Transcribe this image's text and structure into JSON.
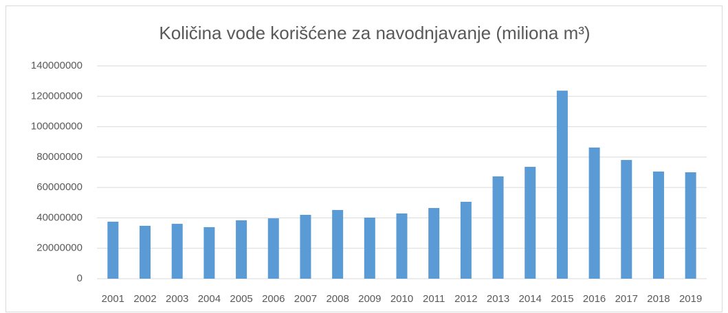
{
  "chart_data": {
    "type": "bar",
    "title": "Količina vode korišćene za navodnjavanje (miliona m³)",
    "categories": [
      "2001",
      "2002",
      "2003",
      "2004",
      "2005",
      "2006",
      "2007",
      "2008",
      "2009",
      "2010",
      "2011",
      "2012",
      "2013",
      "2014",
      "2015",
      "2016",
      "2017",
      "2018",
      "2019"
    ],
    "values": [
      37500000,
      34800000,
      36100000,
      33900000,
      38400000,
      39700000,
      42000000,
      45200000,
      40200000,
      42900000,
      46500000,
      50600000,
      67300000,
      73600000,
      123700000,
      86300000,
      78100000,
      70500000,
      70000000
    ],
    "color": "#5b9bd5",
    "ylim": [
      0,
      140000000
    ],
    "yticks": [
      0,
      20000000,
      40000000,
      60000000,
      80000000,
      100000000,
      120000000,
      140000000
    ],
    "grid": true
  }
}
